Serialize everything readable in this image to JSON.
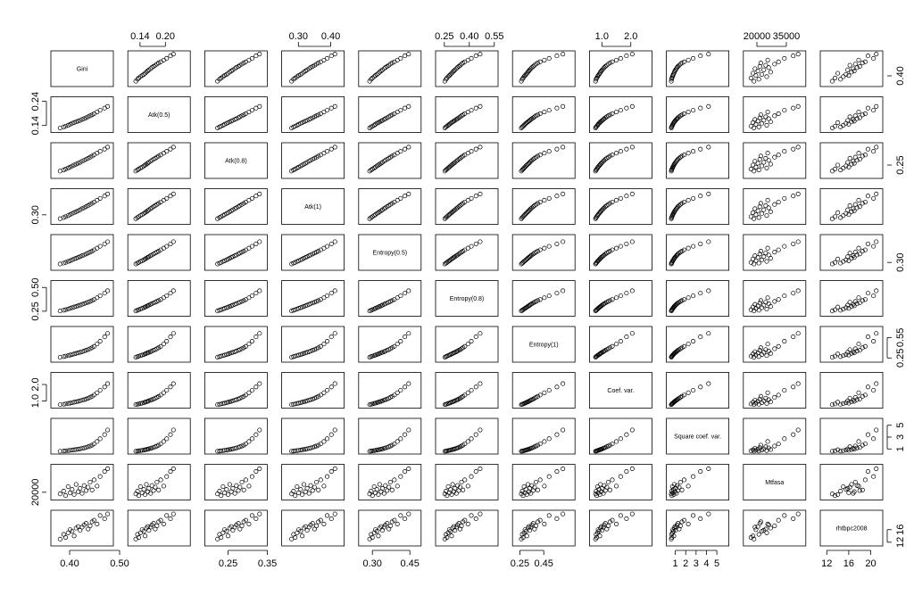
{
  "chart_data": {
    "type": "scatter",
    "subtype": "scatterplot-matrix",
    "title": "",
    "marker": "open-circle",
    "variables": [
      {
        "name": "Gini",
        "axis_side": "right",
        "ticks": [
          0.4
        ],
        "range": [
          0.37,
          0.48
        ]
      },
      {
        "name": "Atk(0.5)",
        "axis_side": "left",
        "ticks": [
          0.14,
          0.24
        ],
        "range": [
          0.12,
          0.25
        ]
      },
      {
        "name": "Atk(0.8)",
        "axis_side": "right",
        "ticks": [
          0.25
        ],
        "range": [
          0.2,
          0.34
        ]
      },
      {
        "name": "Atk(1)",
        "axis_side": "left",
        "ticks": [
          0.3
        ],
        "range": [
          0.26,
          0.43
        ]
      },
      {
        "name": "Entropy(0.5)",
        "axis_side": "right",
        "ticks": [
          0.3
        ],
        "range": [
          0.26,
          0.48
        ]
      },
      {
        "name": "Entropy(0.8)",
        "axis_side": "left",
        "ticks": [
          0.25,
          0.5
        ],
        "range": [
          0.22,
          0.55
        ]
      },
      {
        "name": "Entropy(1)",
        "axis_side": "right",
        "ticks": [
          0.25,
          0.55
        ],
        "range": [
          0.22,
          0.68
        ]
      },
      {
        "name": "Coef. var.",
        "axis_side": "left",
        "ticks": [
          1.0,
          2.0
        ],
        "range": [
          0.7,
          2.6
        ]
      },
      {
        "name": "Square coef. var.",
        "axis_side": "right",
        "ticks": [
          1,
          3,
          5
        ],
        "range": [
          0.5,
          5.8
        ]
      },
      {
        "name": "Mtfasa",
        "axis_side": "left",
        "ticks": [
          20000
        ],
        "range": [
          15000,
          43000
        ]
      },
      {
        "name": "rhtbpc2008",
        "axis_side": "right",
        "ticks": [
          12,
          16
        ],
        "range": [
          11.5,
          21.5
        ]
      }
    ],
    "top_axis_ticks": [
      {
        "var": 1,
        "labels": [
          "0.14",
          "0.20"
        ],
        "values": [
          0.14,
          0.2
        ]
      },
      {
        "var": 3,
        "labels": [
          "0.30",
          "0.40"
        ],
        "values": [
          0.3,
          0.4
        ]
      },
      {
        "var": 5,
        "labels": [
          "0.25",
          "0.40",
          "0.55"
        ],
        "values": [
          0.25,
          0.4,
          0.55
        ]
      },
      {
        "var": 7,
        "labels": [
          "1.0",
          "2.0"
        ],
        "values": [
          1.0,
          2.0
        ]
      },
      {
        "var": 9,
        "labels": [
          "20000",
          "35000"
        ],
        "values": [
          20000,
          35000
        ]
      }
    ],
    "bottom_axis_ticks": [
      {
        "var": 0,
        "labels": [
          "0.40",
          "0.50"
        ],
        "values": [
          0.4,
          0.5
        ]
      },
      {
        "var": 2,
        "labels": [
          "0.25",
          "0.35"
        ],
        "values": [
          0.25,
          0.35
        ]
      },
      {
        "var": 4,
        "labels": [
          "0.30",
          "0.45"
        ],
        "values": [
          0.3,
          0.45
        ]
      },
      {
        "var": 6,
        "labels": [
          "0.25",
          "0.45"
        ],
        "values": [
          0.25,
          0.45
        ]
      },
      {
        "var": 8,
        "labels": [
          "1",
          "2",
          "3",
          "4",
          "5"
        ],
        "values": [
          1,
          2,
          3,
          4,
          5
        ]
      },
      {
        "var": 10,
        "labels": [
          "12",
          "16",
          "20"
        ],
        "values": [
          12,
          16,
          20
        ]
      }
    ],
    "left_axis_ticks": [
      {
        "var": 1,
        "labels": [
          "0.14",
          "0.24"
        ],
        "values": [
          0.14,
          0.24
        ]
      },
      {
        "var": 3,
        "labels": [
          "0.30"
        ],
        "values": [
          0.3
        ]
      },
      {
        "var": 5,
        "labels": [
          "0.25",
          "0.50"
        ],
        "values": [
          0.25,
          0.5
        ]
      },
      {
        "var": 7,
        "labels": [
          "1.0",
          "2.0"
        ],
        "values": [
          1.0,
          2.0
        ]
      },
      {
        "var": 9,
        "labels": [
          "20000"
        ],
        "values": [
          20000
        ]
      }
    ],
    "right_axis_ticks": [
      {
        "var": 0,
        "labels": [
          "0.40"
        ],
        "values": [
          0.4
        ]
      },
      {
        "var": 2,
        "labels": [
          "0.25"
        ],
        "values": [
          0.25
        ]
      },
      {
        "var": 4,
        "labels": [
          "0.30"
        ],
        "values": [
          0.3
        ]
      },
      {
        "var": 6,
        "labels": [
          "0.25",
          "0.55"
        ],
        "values": [
          0.25,
          0.55
        ]
      },
      {
        "var": 8,
        "labels": [
          "1",
          "3",
          "5"
        ],
        "values": [
          1,
          3,
          5
        ]
      },
      {
        "var": 10,
        "labels": [
          "12",
          "16"
        ],
        "values": [
          12,
          16
        ]
      }
    ],
    "observations": [
      [
        0.381,
        0.13,
        0.223,
        0.279,
        0.289,
        0.253,
        0.262,
        0.78,
        0.61,
        18500,
        13.0
      ],
      [
        0.388,
        0.134,
        0.228,
        0.285,
        0.295,
        0.26,
        0.27,
        0.8,
        0.64,
        21000,
        14.5
      ],
      [
        0.392,
        0.137,
        0.232,
        0.29,
        0.3,
        0.266,
        0.277,
        0.82,
        0.67,
        17000,
        13.5
      ],
      [
        0.397,
        0.141,
        0.237,
        0.296,
        0.307,
        0.273,
        0.285,
        0.85,
        0.72,
        25000,
        15.0
      ],
      [
        0.401,
        0.145,
        0.241,
        0.301,
        0.312,
        0.28,
        0.293,
        0.87,
        0.76,
        19500,
        16.0
      ],
      [
        0.405,
        0.149,
        0.246,
        0.307,
        0.318,
        0.287,
        0.301,
        0.9,
        0.81,
        22500,
        15.5
      ],
      [
        0.409,
        0.152,
        0.25,
        0.312,
        0.324,
        0.294,
        0.309,
        0.93,
        0.86,
        18000,
        14.0
      ],
      [
        0.413,
        0.155,
        0.254,
        0.317,
        0.329,
        0.3,
        0.317,
        0.95,
        0.9,
        27000,
        16.5
      ],
      [
        0.417,
        0.158,
        0.258,
        0.322,
        0.335,
        0.307,
        0.325,
        0.98,
        0.96,
        20500,
        17.0
      ],
      [
        0.421,
        0.161,
        0.262,
        0.327,
        0.34,
        0.314,
        0.333,
        1.01,
        1.02,
        23500,
        15.8
      ],
      [
        0.425,
        0.165,
        0.267,
        0.333,
        0.347,
        0.322,
        0.342,
        1.05,
        1.1,
        19000,
        16.8
      ],
      [
        0.429,
        0.168,
        0.271,
        0.338,
        0.352,
        0.329,
        0.351,
        1.08,
        1.17,
        26000,
        17.5
      ],
      [
        0.433,
        0.172,
        0.276,
        0.344,
        0.359,
        0.337,
        0.362,
        1.12,
        1.25,
        21500,
        18.0
      ],
      [
        0.437,
        0.176,
        0.28,
        0.35,
        0.366,
        0.345,
        0.373,
        1.17,
        1.37,
        24500,
        16.2
      ],
      [
        0.441,
        0.18,
        0.285,
        0.356,
        0.372,
        0.353,
        0.385,
        1.22,
        1.49,
        29000,
        17.2
      ],
      [
        0.445,
        0.184,
        0.29,
        0.362,
        0.379,
        0.362,
        0.4,
        1.28,
        1.64,
        22000,
        18.5
      ],
      [
        0.449,
        0.189,
        0.295,
        0.369,
        0.388,
        0.373,
        0.42,
        1.36,
        1.85,
        31000,
        19.0
      ],
      [
        0.455,
        0.196,
        0.303,
        0.379,
        0.4,
        0.392,
        0.455,
        1.5,
        2.25,
        25500,
        17.8
      ],
      [
        0.461,
        0.203,
        0.311,
        0.389,
        0.413,
        0.412,
        0.495,
        1.65,
        2.72,
        34000,
        20.5
      ],
      [
        0.47,
        0.212,
        0.321,
        0.402,
        0.43,
        0.44,
        0.56,
        1.85,
        3.42,
        38500,
        19.5
      ],
      [
        0.476,
        0.219,
        0.33,
        0.413,
        0.445,
        0.465,
        0.61,
        2.05,
        4.2,
        41000,
        21.0
      ]
    ]
  }
}
